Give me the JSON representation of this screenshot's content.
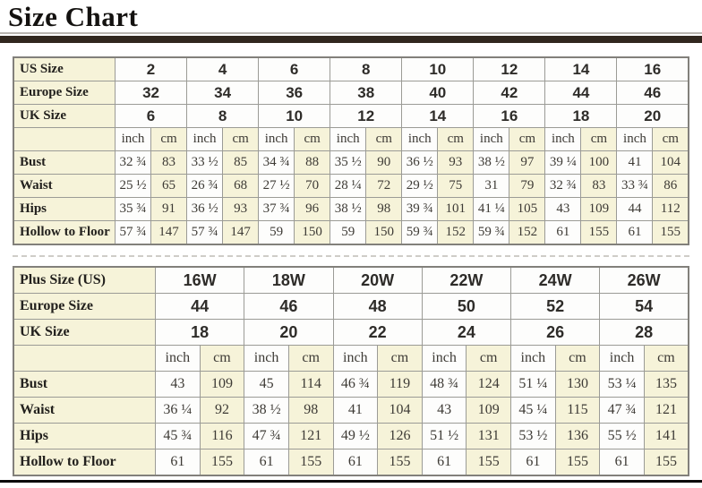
{
  "page": {
    "title": "Size Chart"
  },
  "colors": {
    "cream_cell": "#f6f3d9",
    "white_cell": "#fdfdfc",
    "inner_border": "#9b9b96",
    "outer_border": "#82807b",
    "title_bar": "#31271f",
    "thin_rule": "#b9b5b1",
    "bottom_line": "#0c0c0c"
  },
  "standard_table": {
    "size_rows": [
      {
        "label": "US Size",
        "values": [
          "2",
          "4",
          "6",
          "8",
          "10",
          "12",
          "14",
          "16"
        ]
      },
      {
        "label": "Europe Size",
        "values": [
          "32",
          "34",
          "36",
          "38",
          "40",
          "42",
          "44",
          "46"
        ]
      },
      {
        "label": "UK Size",
        "values": [
          "6",
          "8",
          "10",
          "12",
          "14",
          "16",
          "18",
          "20"
        ]
      }
    ],
    "unit_labels": [
      "inch",
      "cm"
    ],
    "measure_rows": [
      {
        "label": "Bust",
        "values": [
          "32 ¾",
          "83",
          "33 ½",
          "85",
          "34 ¾",
          "88",
          "35 ½",
          "90",
          "36 ½",
          "93",
          "38 ½",
          "97",
          "39 ¼",
          "100",
          "41",
          "104"
        ]
      },
      {
        "label": "Waist",
        "values": [
          "25 ½",
          "65",
          "26 ¾",
          "68",
          "27 ½",
          "70",
          "28 ¼",
          "72",
          "29 ½",
          "75",
          "31",
          "79",
          "32 ¾",
          "83",
          "33 ¾",
          "86"
        ]
      },
      {
        "label": "Hips",
        "values": [
          "35 ¾",
          "91",
          "36 ½",
          "93",
          "37 ¾",
          "96",
          "38 ½",
          "98",
          "39 ¾",
          "101",
          "41 ¼",
          "105",
          "43",
          "109",
          "44",
          "112"
        ]
      },
      {
        "label": "Hollow to Floor",
        "values": [
          "57 ¾",
          "147",
          "57 ¾",
          "147",
          "59",
          "150",
          "59",
          "150",
          "59 ¾",
          "152",
          "59 ¾",
          "152",
          "61",
          "155",
          "61",
          "155"
        ]
      }
    ]
  },
  "plus_table": {
    "size_rows": [
      {
        "label": "Plus Size (US)",
        "values": [
          "16W",
          "18W",
          "20W",
          "22W",
          "24W",
          "26W"
        ]
      },
      {
        "label": "Europe Size",
        "values": [
          "44",
          "46",
          "48",
          "50",
          "52",
          "54"
        ]
      },
      {
        "label": "UK Size",
        "values": [
          "18",
          "20",
          "22",
          "24",
          "26",
          "28"
        ]
      }
    ],
    "unit_labels": [
      "inch",
      "cm"
    ],
    "measure_rows": [
      {
        "label": "Bust",
        "values": [
          "43",
          "109",
          "45",
          "114",
          "46 ¾",
          "119",
          "48 ¾",
          "124",
          "51 ¼",
          "130",
          "53 ¼",
          "135"
        ]
      },
      {
        "label": "Waist",
        "values": [
          "36 ¼",
          "92",
          "38 ½",
          "98",
          "41",
          "104",
          "43",
          "109",
          "45 ¼",
          "115",
          "47 ¾",
          "121"
        ]
      },
      {
        "label": "Hips",
        "values": [
          "45 ¾",
          "116",
          "47 ¾",
          "121",
          "49 ½",
          "126",
          "51 ½",
          "131",
          "53 ½",
          "136",
          "55 ½",
          "141"
        ]
      },
      {
        "label": "Hollow to Floor",
        "values": [
          "61",
          "155",
          "61",
          "155",
          "61",
          "155",
          "61",
          "155",
          "61",
          "155",
          "61",
          "155"
        ]
      }
    ]
  }
}
